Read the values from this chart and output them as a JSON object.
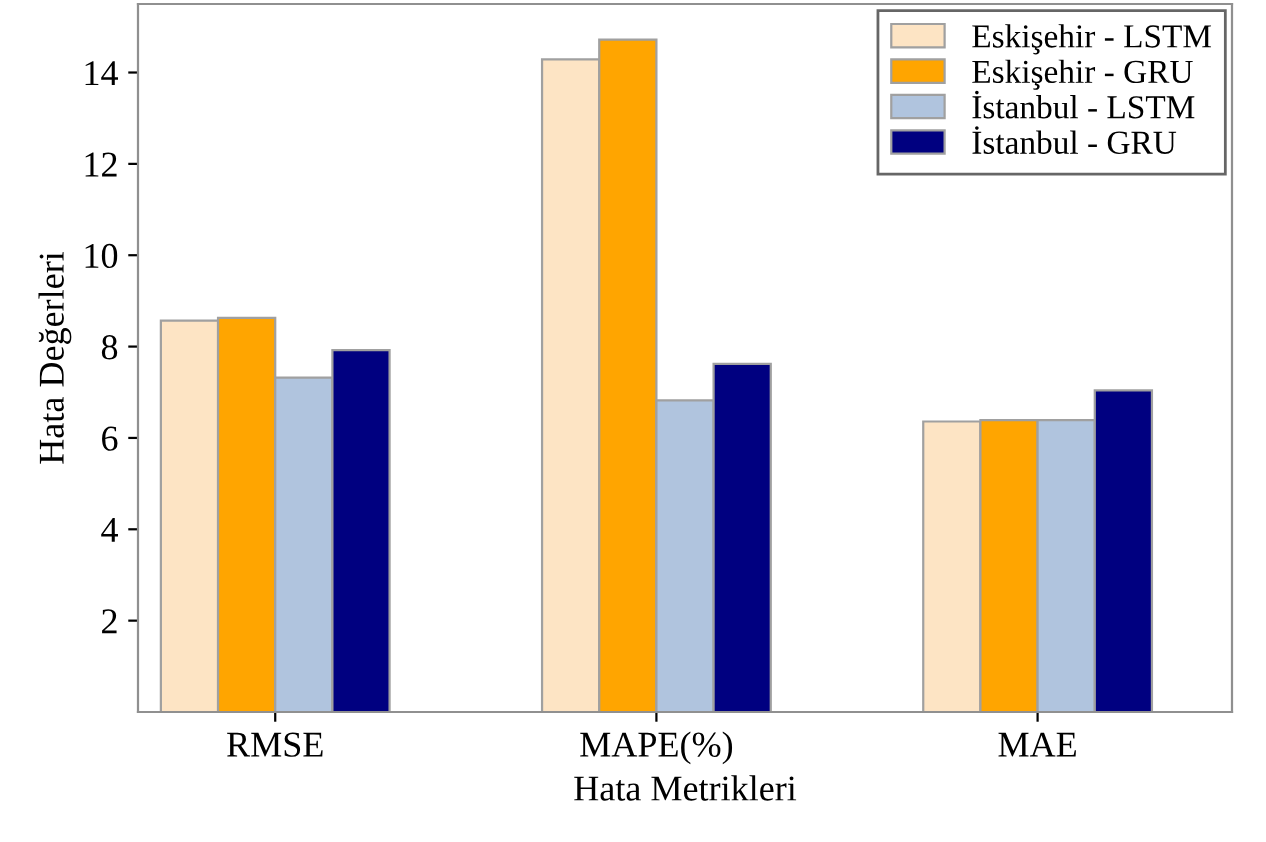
{
  "chart_data": {
    "type": "bar",
    "xlabel": "Hata Metrikleri",
    "ylabel": "Hata Değerleri",
    "categories": [
      "RMSE",
      "MAPE(%)",
      "MAE"
    ],
    "series": [
      {
        "name": "Eskişehir - LSTM",
        "color": "#fde4c4",
        "values": [
          8.57,
          14.29,
          6.36
        ]
      },
      {
        "name": "Eskişehir - GRU",
        "color": "#ffa500",
        "values": [
          8.63,
          14.72,
          6.39
        ]
      },
      {
        "name": "İstanbul - LSTM",
        "color": "#b0c4de",
        "values": [
          7.32,
          6.82,
          6.39
        ]
      },
      {
        "name": "İstanbul - GRU",
        "color": "#000080",
        "values": [
          7.92,
          7.62,
          7.04
        ]
      }
    ],
    "ylim": [
      0,
      15.5
    ],
    "yticks": [
      2,
      4,
      6,
      8,
      10,
      12,
      14
    ],
    "grid": false,
    "legend": "top right"
  }
}
